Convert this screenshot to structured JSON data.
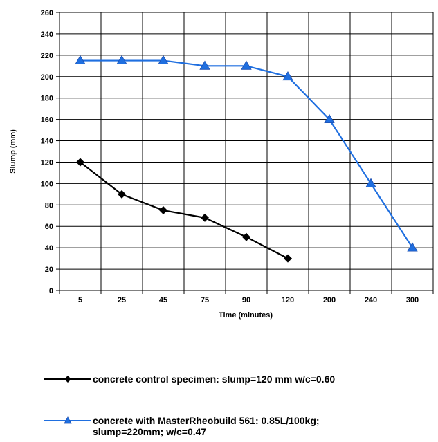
{
  "chart_data": {
    "type": "line",
    "categories": [
      "5",
      "25",
      "45",
      "75",
      "90",
      "120",
      "200",
      "240",
      "300"
    ],
    "xlabel": "Time (minutes)",
    "ylabel": "Slump (mm)",
    "ylim": [
      0,
      260
    ],
    "yticks": [
      "0",
      "20",
      "40",
      "60",
      "80",
      "100",
      "120",
      "140",
      "160",
      "180",
      "200",
      "220",
      "240",
      "260"
    ],
    "grid": true,
    "legend_placement": "bottom",
    "series": [
      {
        "name": "concrete control specimen: slump=120 mm w/c=0.60",
        "values": [
          120,
          90,
          75,
          68,
          50,
          30,
          null,
          null,
          null
        ],
        "color": "#000000",
        "marker": "diamond"
      },
      {
        "name": "concrete with MasterRheobuild 561: 0.85L/100kg; slump=220mm; w/c=0.47",
        "values": [
          215,
          215,
          215,
          210,
          210,
          200,
          160,
          100,
          40
        ],
        "color": "#1f6fe0",
        "marker": "triangle"
      }
    ]
  },
  "legend": {
    "series1_label": "concrete control specimen: slump=120 mm w/c=0.60",
    "series2_line1": "concrete with MasterRheobuild 561: 0.85L/100kg;",
    "series2_line2": "slump=220mm; w/c=0.47"
  }
}
